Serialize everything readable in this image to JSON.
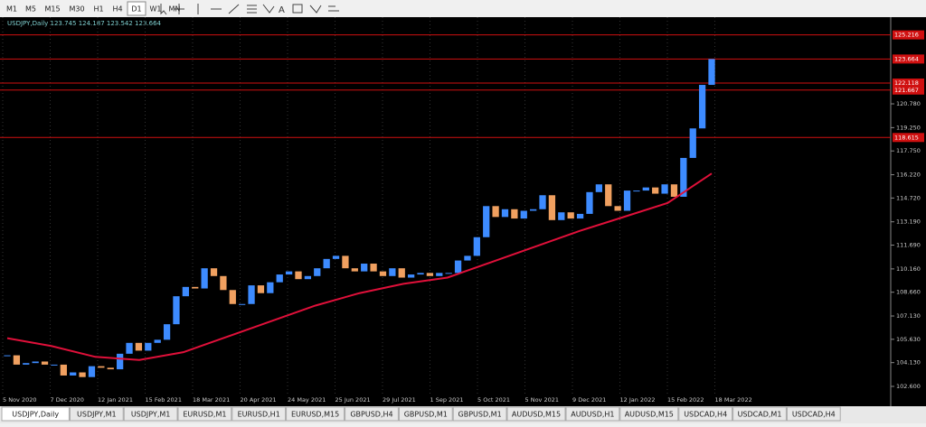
{
  "toolbar": {
    "timeframes": [
      "M1",
      "M5",
      "M15",
      "M30",
      "H1",
      "H4",
      "D1",
      "W1",
      "MN"
    ],
    "active": 6
  },
  "chart_data": {
    "type": "candlestick",
    "title": "USDJPY,Daily  123.745 124.187 123.542 123.664",
    "ylim": [
      102.02,
      126.3
    ],
    "yticks": [
      {
        "value": 120.78,
        "label": "120.780"
      },
      {
        "value": 119.25,
        "label": "119.250"
      },
      {
        "value": 117.75,
        "label": "117.750"
      },
      {
        "value": 116.22,
        "label": "116.220"
      },
      {
        "value": 114.72,
        "label": "114.720"
      },
      {
        "value": 113.19,
        "label": "113.190"
      },
      {
        "value": 111.69,
        "label": "111.690"
      },
      {
        "value": 110.16,
        "label": "110.160"
      },
      {
        "value": 108.66,
        "label": "108.660"
      },
      {
        "value": 107.13,
        "label": "107.130"
      },
      {
        "value": 105.63,
        "label": "105.630"
      },
      {
        "value": 104.13,
        "label": "104.130"
      },
      {
        "value": 102.6,
        "label": "102.600"
      }
    ],
    "levels": [
      {
        "value": 125.216,
        "label": "125.216"
      },
      {
        "value": 123.664,
        "label": "123.664"
      },
      {
        "value": 122.118,
        "label": "122.118"
      },
      {
        "value": 121.667,
        "label": "121.667"
      },
      {
        "value": 118.615,
        "label": "118.615"
      }
    ],
    "date_labels": [
      "5 Nov 2020",
      "7 Dec 2020",
      "12 Jan 2021",
      "15 Feb 2021",
      "18 Mar 2021",
      "20 Apr 2021",
      "24 May 2021",
      "25 Jun 2021",
      "29 Jul 2021",
      "1 Sep 2021",
      "5 Oct 2021",
      "5 Nov 2021",
      "9 Dec 2021",
      "12 Jan 2022",
      "15 Feb 2022",
      "18 Mar 2022"
    ],
    "closes": [
      104.6,
      104.0,
      104.1,
      104.2,
      104.0,
      104.0,
      103.3,
      103.5,
      103.2,
      103.9,
      103.8,
      103.7,
      104.7,
      105.4,
      104.9,
      105.4,
      105.6,
      106.6,
      108.4,
      109.0,
      108.9,
      110.2,
      109.7,
      108.8,
      107.9,
      107.9,
      109.1,
      108.6,
      109.3,
      109.8,
      110.0,
      109.5,
      109.7,
      110.2,
      110.8,
      111.0,
      110.2,
      110.0,
      110.5,
      110.0,
      109.7,
      110.2,
      109.6,
      109.8,
      109.9,
      109.7,
      109.9,
      109.9,
      110.7,
      111.0,
      112.2,
      114.2,
      113.5,
      114.0,
      113.4,
      113.9,
      114.0,
      114.9,
      113.3,
      113.8,
      113.4,
      113.7,
      115.1,
      115.6,
      114.2,
      113.9,
      115.2,
      115.2,
      115.4,
      115.0,
      115.6,
      114.8,
      117.3,
      119.2,
      122.0,
      123.664
    ],
    "moving_average": [
      105.7,
      105.2,
      104.5,
      104.3,
      104.8,
      105.8,
      106.8,
      107.8,
      108.6,
      109.2,
      109.6,
      110.6,
      111.6,
      112.6,
      113.5,
      114.4,
      116.3
    ],
    "up_color": "#3d8bff",
    "down_color": "#f0a060",
    "ma_color": "#e0103a",
    "level_color": "#d01010"
  },
  "tabs": [
    "USDJPY,Daily",
    "USDJPY,M1",
    "USDJPY,M1",
    "EURUSD,M1",
    "EURUSD,H1",
    "EURUSD,M15",
    "GBPUSD,H4",
    "GBPUSD,M1",
    "GBPUSD,M1",
    "AUDUSD,M15",
    "AUDUSD,H1",
    "AUDUSD,M15",
    "USDCAD,H4",
    "USDCAD,M1",
    "USDCAD,H4"
  ]
}
